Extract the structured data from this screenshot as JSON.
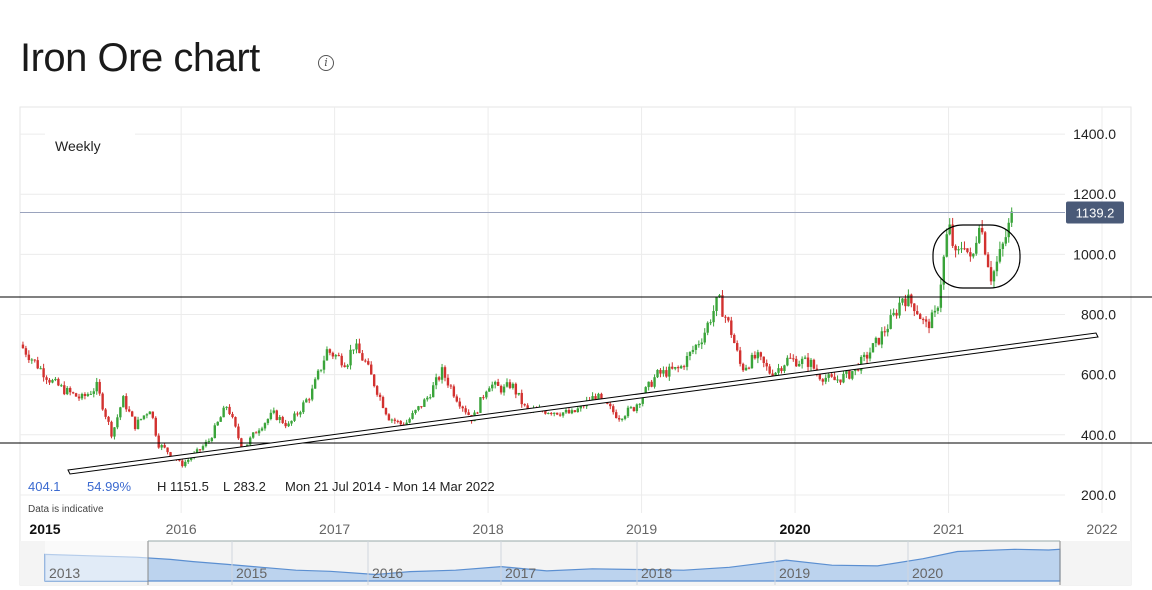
{
  "page": {
    "title": "Iron Ore chart",
    "info_icon": "info-icon"
  },
  "chart_data": {
    "type": "candlestick",
    "interval_label": "Weekly",
    "y_ticks": [
      200,
      400,
      600,
      800,
      1000,
      1200,
      1400
    ],
    "y_tick_labels": [
      "200.0",
      "400.0",
      "600.0",
      "800.0",
      "1000.0",
      "1200.0",
      "1400.0"
    ],
    "ylim": [
      140,
      1490
    ],
    "x_range": [
      2014.95,
      2022.0
    ],
    "x_ticks": [
      {
        "year": 2015,
        "label": "2015",
        "bold": true
      },
      {
        "year": 2016,
        "label": "2016",
        "bold": false
      },
      {
        "year": 2017,
        "label": "2017",
        "bold": false
      },
      {
        "year": 2018,
        "label": "2018",
        "bold": false
      },
      {
        "year": 2019,
        "label": "2019",
        "bold": false
      },
      {
        "year": 2020,
        "label": "2020",
        "bold": true
      },
      {
        "year": 2021,
        "label": "2021",
        "bold": false
      },
      {
        "year": 2022,
        "label": "2022",
        "bold": false
      }
    ],
    "last_price": 1139.2,
    "last_price_label": "1139.2",
    "stats": {
      "change": "404.1",
      "change_pct": "54.99%",
      "high": "H 1151.5",
      "low": "L 283.2",
      "range": "Mon 21 Jul 2014 - Mon 14 Mar 2022"
    },
    "disclaimer": "Data is indicative",
    "up_color": "#3aa43a",
    "down_color": "#d2312f",
    "price_path": [
      [
        2014.95,
        700
      ],
      [
        2015.05,
        640
      ],
      [
        2015.15,
        580
      ],
      [
        2015.25,
        545
      ],
      [
        2015.35,
        520
      ],
      [
        2015.45,
        560
      ],
      [
        2015.55,
        400
      ],
      [
        2015.62,
        520
      ],
      [
        2015.7,
        430
      ],
      [
        2015.8,
        490
      ],
      [
        2015.85,
        370
      ],
      [
        2015.95,
        330
      ],
      [
        2016.0,
        300
      ],
      [
        2016.08,
        330
      ],
      [
        2016.18,
        380
      ],
      [
        2016.3,
        500
      ],
      [
        2016.4,
        350
      ],
      [
        2016.5,
        420
      ],
      [
        2016.6,
        470
      ],
      [
        2016.7,
        430
      ],
      [
        2016.85,
        540
      ],
      [
        2016.95,
        680
      ],
      [
        2017.08,
        640
      ],
      [
        2017.12,
        700
      ],
      [
        2017.2,
        640
      ],
      [
        2017.35,
        460
      ],
      [
        2017.45,
        430
      ],
      [
        2017.6,
        520
      ],
      [
        2017.7,
        610
      ],
      [
        2017.8,
        520
      ],
      [
        2017.9,
        450
      ],
      [
        2018.0,
        570
      ],
      [
        2018.1,
        550
      ],
      [
        2018.15,
        570
      ],
      [
        2018.25,
        480
      ],
      [
        2018.4,
        480
      ],
      [
        2018.55,
        470
      ],
      [
        2018.7,
        530
      ],
      [
        2018.85,
        460
      ],
      [
        2018.95,
        490
      ],
      [
        2019.1,
        600
      ],
      [
        2019.25,
        620
      ],
      [
        2019.4,
        730
      ],
      [
        2019.5,
        850
      ],
      [
        2019.58,
        750
      ],
      [
        2019.65,
        620
      ],
      [
        2019.75,
        660
      ],
      [
        2019.85,
        600
      ],
      [
        2019.95,
        650
      ],
      [
        2020.1,
        640
      ],
      [
        2020.15,
        600
      ],
      [
        2020.25,
        580
      ],
      [
        2020.35,
        600
      ],
      [
        2020.45,
        650
      ],
      [
        2020.55,
        720
      ],
      [
        2020.65,
        800
      ],
      [
        2020.7,
        860
      ],
      [
        2020.78,
        830
      ],
      [
        2020.85,
        760
      ],
      [
        2020.92,
        800
      ],
      [
        2021.0,
        1100
      ],
      [
        2021.05,
        980
      ],
      [
        2021.1,
        1050
      ],
      [
        2021.15,
        960
      ],
      [
        2021.2,
        1120
      ],
      [
        2021.28,
        920
      ],
      [
        2021.35,
        1020
      ],
      [
        2021.42,
        1139
      ]
    ],
    "navigator": {
      "labels": [
        "2013",
        "2015",
        "2016",
        "2017",
        "2018",
        "2019",
        "2020"
      ],
      "profile": [
        [
          2013.0,
          0.74
        ],
        [
          2013.4,
          0.7
        ],
        [
          2013.8,
          0.66
        ],
        [
          2014.1,
          0.6
        ],
        [
          2014.3,
          0.54
        ],
        [
          2014.6,
          0.46
        ],
        [
          2014.9,
          0.38
        ],
        [
          2015.2,
          0.3
        ],
        [
          2015.5,
          0.27
        ],
        [
          2015.9,
          0.18
        ],
        [
          2016.2,
          0.26
        ],
        [
          2016.6,
          0.3
        ],
        [
          2017.0,
          0.4
        ],
        [
          2017.4,
          0.28
        ],
        [
          2017.8,
          0.34
        ],
        [
          2018.2,
          0.32
        ],
        [
          2018.6,
          0.3
        ],
        [
          2019.0,
          0.38
        ],
        [
          2019.5,
          0.58
        ],
        [
          2019.9,
          0.44
        ],
        [
          2020.3,
          0.42
        ],
        [
          2020.7,
          0.62
        ],
        [
          2021.0,
          0.82
        ],
        [
          2021.5,
          0.88
        ],
        [
          2021.8,
          0.86
        ],
        [
          2021.9,
          0.88
        ]
      ]
    }
  }
}
